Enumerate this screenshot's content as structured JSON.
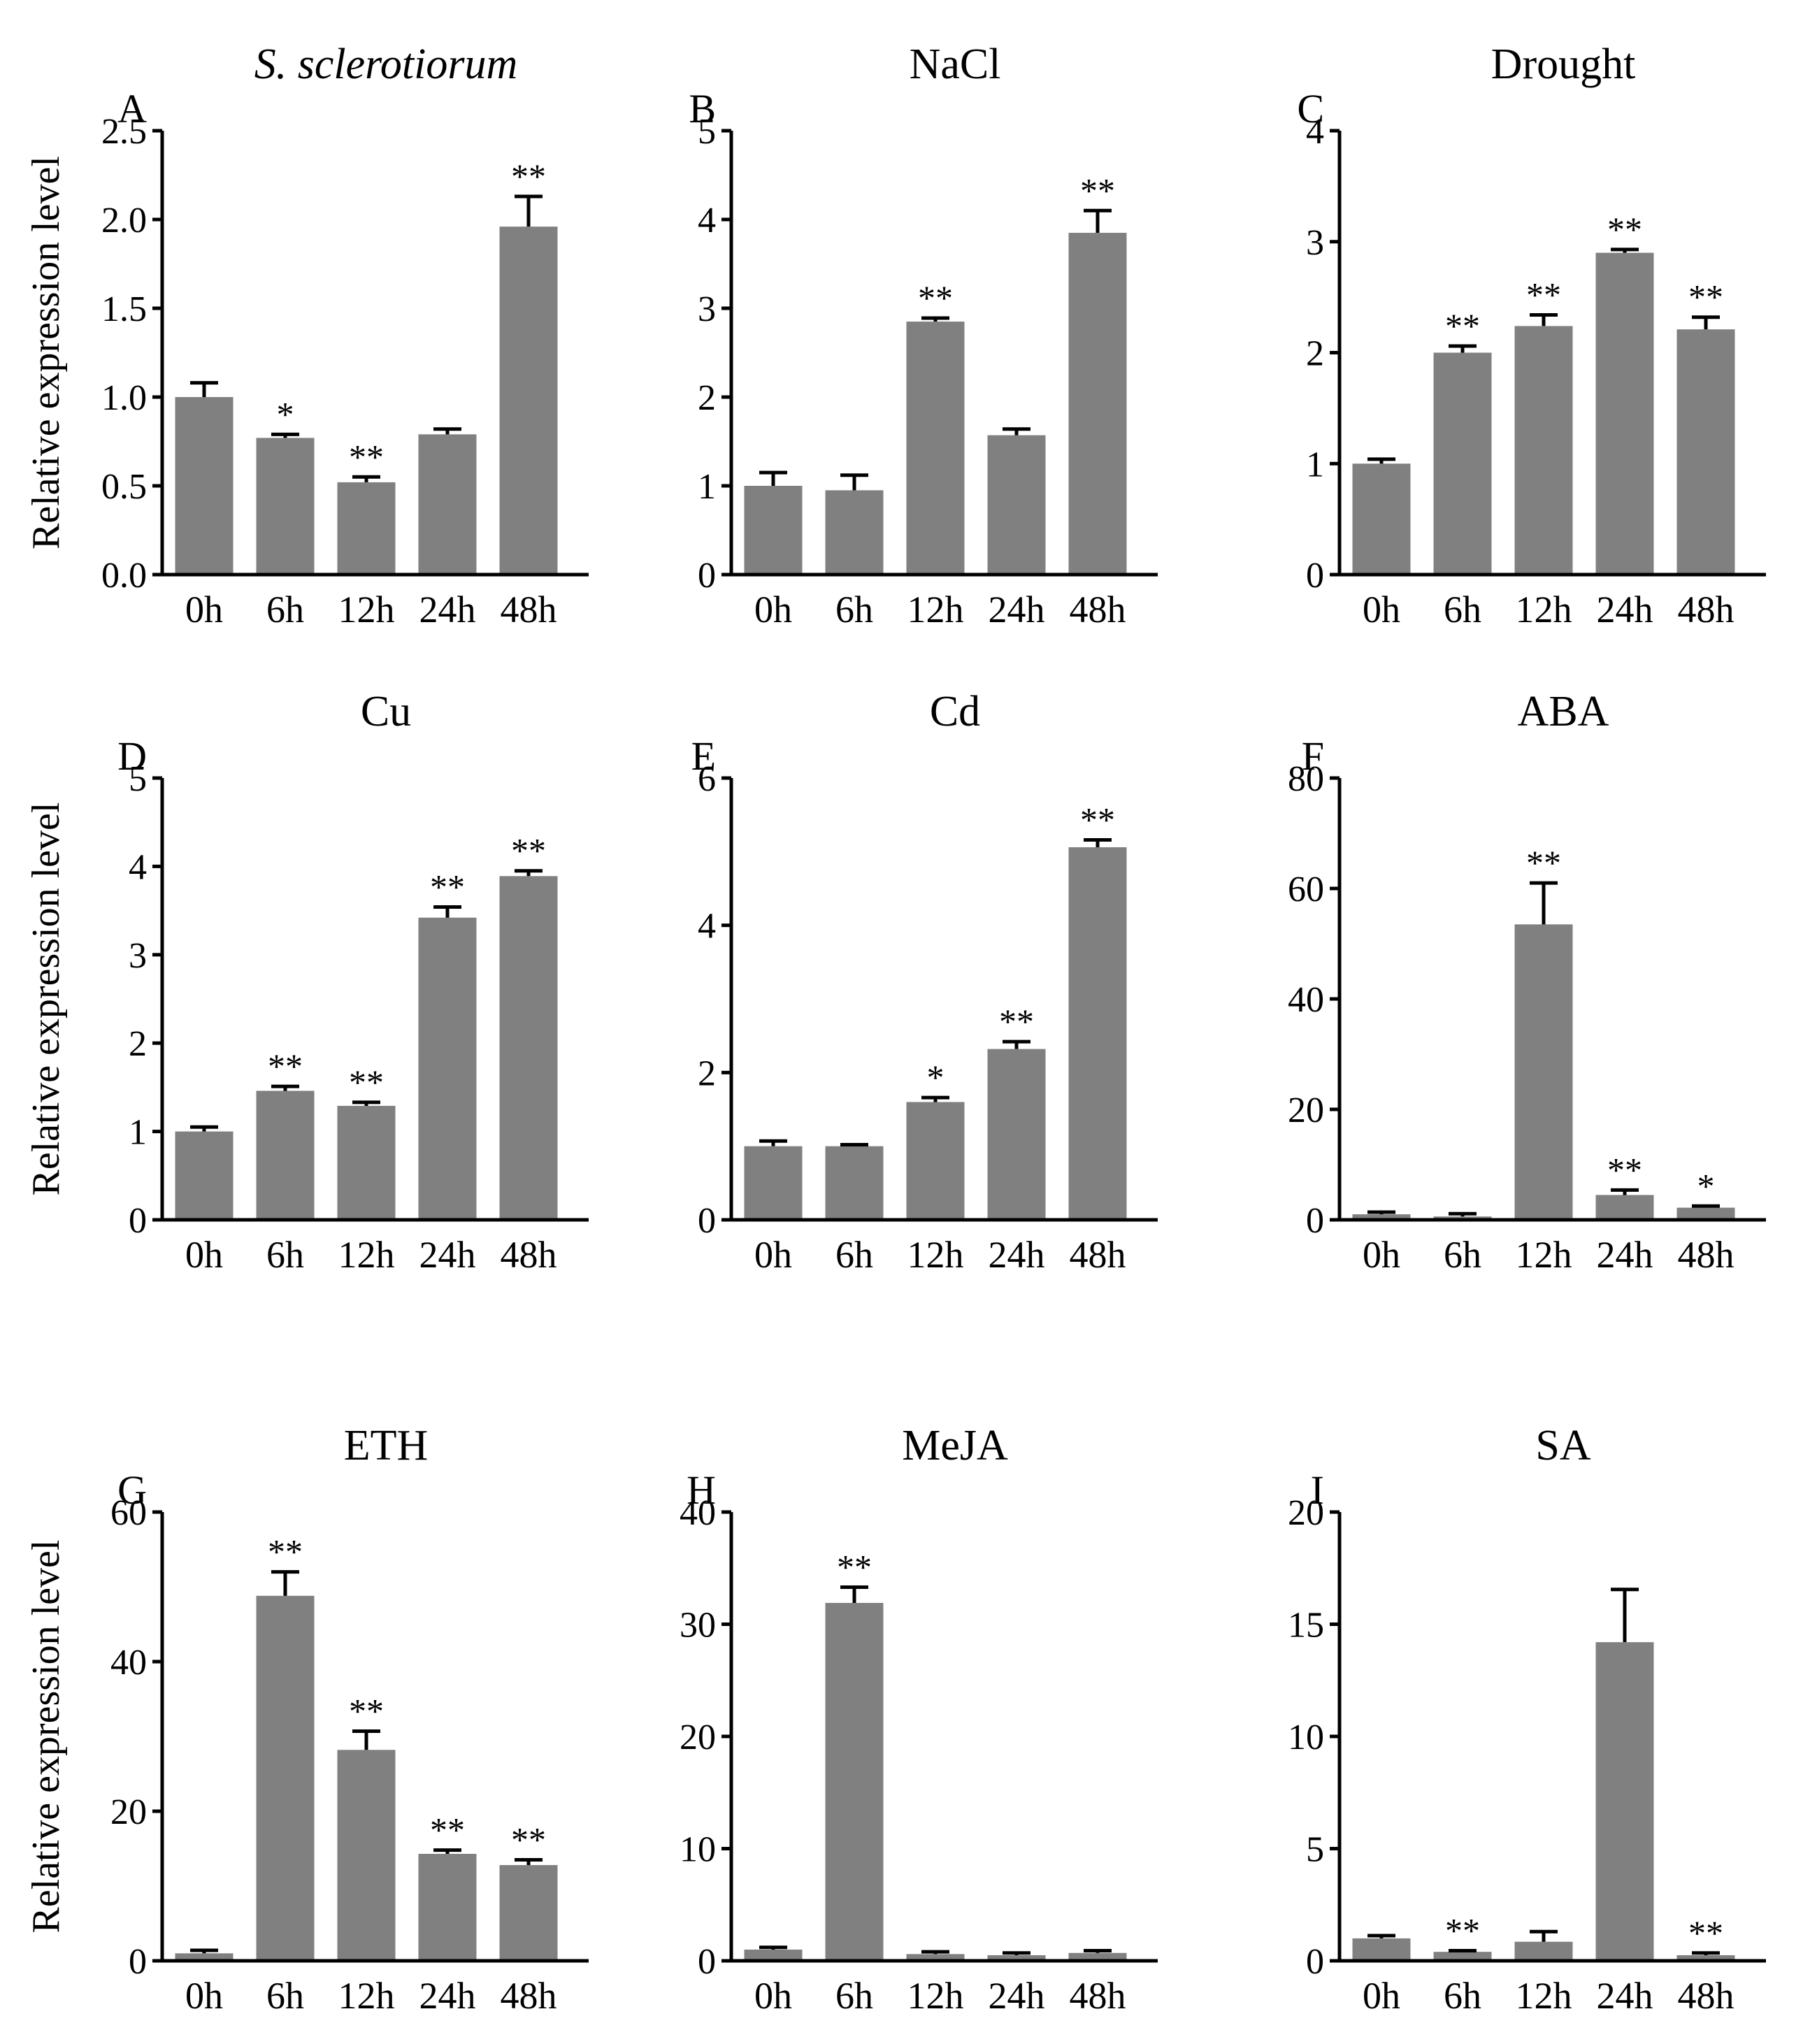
{
  "chart_data": [
    {
      "type": "bar",
      "letter": "A",
      "title": "S. sclerotiorum",
      "title_italic": true,
      "ylabel": "Relative expression level",
      "categories": [
        "0h",
        "6h",
        "12h",
        "24h",
        "48h"
      ],
      "values": [
        1.0,
        0.77,
        0.52,
        0.79,
        1.96
      ],
      "errors": [
        0.08,
        0.02,
        0.03,
        0.03,
        0.17
      ],
      "significance": [
        "",
        "*",
        "**",
        "",
        "**"
      ],
      "ylim": [
        0,
        2.5
      ],
      "yticks": [
        0,
        0.5,
        1,
        1.5,
        2,
        2.5
      ],
      "ytick_labels": [
        "0.0",
        "0.5",
        "1.0",
        "1.5",
        "2.0",
        "2.5"
      ]
    },
    {
      "type": "bar",
      "letter": "B",
      "title": "NaCl",
      "ylabel": "",
      "categories": [
        "0h",
        "6h",
        "12h",
        "24h",
        "48h"
      ],
      "values": [
        1.0,
        0.95,
        2.85,
        1.57,
        3.85
      ],
      "errors": [
        0.15,
        0.17,
        0.04,
        0.07,
        0.25
      ],
      "significance": [
        "",
        "",
        "**",
        "",
        "**"
      ],
      "ylim": [
        0,
        5
      ],
      "yticks": [
        0,
        1,
        2,
        3,
        4,
        5
      ],
      "ytick_labels": [
        "0",
        "1",
        "2",
        "3",
        "4",
        "5"
      ]
    },
    {
      "type": "bar",
      "letter": "C",
      "title": "Drought",
      "ylabel": "",
      "categories": [
        "0h",
        "6h",
        "12h",
        "24h",
        "48h"
      ],
      "values": [
        1.0,
        2.0,
        2.24,
        2.9,
        2.21
      ],
      "errors": [
        0.04,
        0.06,
        0.1,
        0.03,
        0.11
      ],
      "significance": [
        "",
        "**",
        "**",
        "**",
        "**"
      ],
      "ylim": [
        0,
        4
      ],
      "yticks": [
        0,
        1,
        2,
        3,
        4
      ],
      "ytick_labels": [
        "0",
        "1",
        "2",
        "3",
        "4"
      ]
    },
    {
      "type": "bar",
      "letter": "D",
      "title": "Cu",
      "ylabel": "Relative expression level",
      "categories": [
        "0h",
        "6h",
        "12h",
        "24h",
        "48h"
      ],
      "values": [
        1.0,
        1.46,
        1.29,
        3.42,
        3.89
      ],
      "errors": [
        0.05,
        0.05,
        0.04,
        0.12,
        0.06
      ],
      "significance": [
        "",
        "**",
        "**",
        "**",
        "**"
      ],
      "ylim": [
        0,
        5
      ],
      "yticks": [
        0,
        1,
        2,
        3,
        4,
        5
      ],
      "ytick_labels": [
        "0",
        "1",
        "2",
        "3",
        "4",
        "5"
      ]
    },
    {
      "type": "bar",
      "letter": "E",
      "title": "Cd",
      "ylabel": "",
      "categories": [
        "0h",
        "6h",
        "12h",
        "24h",
        "48h"
      ],
      "values": [
        1.0,
        1.0,
        1.6,
        2.32,
        5.06
      ],
      "errors": [
        0.07,
        0.02,
        0.06,
        0.1,
        0.1
      ],
      "significance": [
        "",
        "",
        "*",
        "**",
        "**"
      ],
      "ylim": [
        0,
        6
      ],
      "yticks": [
        0,
        2,
        4,
        6
      ],
      "ytick_labels": [
        "0",
        "2",
        "4",
        "6"
      ]
    },
    {
      "type": "bar",
      "letter": "F",
      "title": "ABA",
      "ylabel": "",
      "categories": [
        "0h",
        "6h",
        "12h",
        "24h",
        "48h"
      ],
      "values": [
        1.0,
        0.6,
        53.5,
        4.5,
        2.2
      ],
      "errors": [
        0.4,
        0.5,
        7.5,
        0.9,
        0.3
      ],
      "significance": [
        "",
        "",
        "**",
        "**",
        "*"
      ],
      "ylim": [
        0,
        80
      ],
      "yticks": [
        0,
        20,
        40,
        60,
        80
      ],
      "ytick_labels": [
        "0",
        "20",
        "40",
        "60",
        "80"
      ]
    },
    {
      "type": "bar",
      "letter": "G",
      "title": "ETH",
      "ylabel": "Relative expression level",
      "categories": [
        "0h",
        "6h",
        "12h",
        "24h",
        "48h"
      ],
      "values": [
        1.0,
        48.8,
        28.2,
        14.3,
        12.8
      ],
      "errors": [
        0.4,
        3.2,
        2.5,
        0.5,
        0.7
      ],
      "significance": [
        "",
        "**",
        "**",
        "**",
        "**"
      ],
      "ylim": [
        0,
        60
      ],
      "yticks": [
        0,
        20,
        40,
        60
      ],
      "ytick_labels": [
        "0",
        "20",
        "40",
        "60"
      ]
    },
    {
      "type": "bar",
      "letter": "H",
      "title": "MeJA",
      "ylabel": "",
      "categories": [
        "0h",
        "6h",
        "12h",
        "24h",
        "48h"
      ],
      "values": [
        1.0,
        31.9,
        0.6,
        0.5,
        0.7
      ],
      "errors": [
        0.2,
        1.4,
        0.2,
        0.2,
        0.2
      ],
      "significance": [
        "",
        "**",
        "",
        "",
        ""
      ],
      "ylim": [
        0,
        40
      ],
      "yticks": [
        0,
        10,
        20,
        30,
        40
      ],
      "ytick_labels": [
        "0",
        "10",
        "20",
        "30",
        "40"
      ]
    },
    {
      "type": "bar",
      "letter": "I",
      "title": "SA",
      "ylabel": "",
      "categories": [
        "0h",
        "6h",
        "12h",
        "24h",
        "48h"
      ],
      "values": [
        1.0,
        0.4,
        0.85,
        14.2,
        0.25
      ],
      "errors": [
        0.12,
        0.05,
        0.45,
        2.35,
        0.1
      ],
      "significance": [
        "",
        "**",
        "",
        "",
        "**"
      ],
      "ylim": [
        0,
        20
      ],
      "yticks": [
        0,
        5,
        10,
        15,
        20
      ],
      "ytick_labels": [
        "0",
        "5",
        "10",
        "15",
        "20"
      ]
    }
  ],
  "style": {
    "bar_color": "#808080",
    "axis_color": "#000000"
  }
}
